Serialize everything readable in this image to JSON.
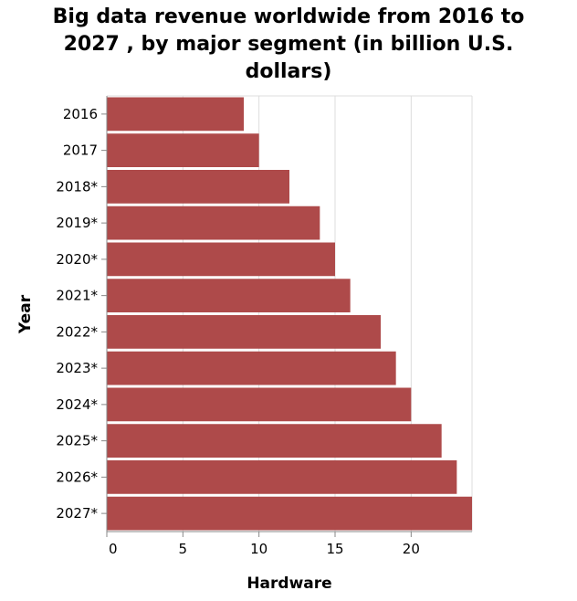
{
  "chart_data": {
    "type": "bar",
    "orientation": "horizontal",
    "title_lines": [
      "Big data revenue worldwide from 2016 to",
      "2027 , by major segment (in billion U.S.",
      "dollars)"
    ],
    "categories": [
      "2016",
      "2017",
      "2018*",
      "2019*",
      "2020*",
      "2021*",
      "2022*",
      "2023*",
      "2024*",
      "2025*",
      "2026*",
      "2027*"
    ],
    "values": [
      9,
      10,
      12,
      14,
      15,
      16,
      18,
      19,
      20,
      22,
      23,
      24
    ],
    "xlabel": "Hardware",
    "ylabel": "Year",
    "xlim": [
      0,
      24
    ],
    "xticks": [
      0,
      5,
      10,
      15,
      20
    ],
    "grid": true,
    "bar_color": "#ae4a4a"
  }
}
